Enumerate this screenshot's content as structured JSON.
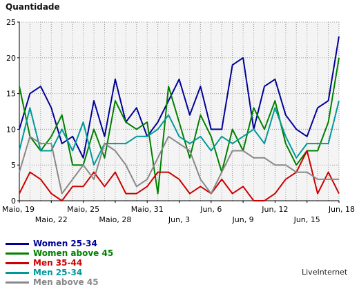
{
  "chart_data": {
    "type": "line",
    "ylabel": "Quantidade",
    "ylim": [
      0,
      25
    ],
    "yticks": [
      0,
      5,
      10,
      15,
      20,
      25
    ],
    "grid": true,
    "legend_position": "bottom-left",
    "brand": "LiveInternet",
    "categories": [
      "Maio, 19",
      "Maio, 20",
      "Maio, 21",
      "Maio, 22",
      "Maio, 23",
      "Maio, 24",
      "Maio, 25",
      "Maio, 26",
      "Maio, 27",
      "Maio, 28",
      "Maio, 29",
      "Maio, 30",
      "Maio, 31",
      "Jun, 1",
      "Jun, 2",
      "Jun, 3",
      "Jun, 4",
      "Jun, 5",
      "Jun, 6",
      "Jun, 7",
      "Jun, 8",
      "Jun, 9",
      "Jun, 10",
      "Jun, 11",
      "Jun, 12",
      "Jun, 13",
      "Jun, 14",
      "Jun, 15",
      "Jun, 16",
      "Jun, 17",
      "Jun, 18"
    ],
    "x_tick_labels": [
      {
        "label": "Maio, 19",
        "index": 0,
        "row": 0
      },
      {
        "label": "Maio, 22",
        "index": 3,
        "row": 1
      },
      {
        "label": "Maio, 25",
        "index": 6,
        "row": 0
      },
      {
        "label": "Maio, 28",
        "index": 9,
        "row": 1
      },
      {
        "label": "Maio, 31",
        "index": 12,
        "row": 0
      },
      {
        "label": "Jun, 3",
        "index": 15,
        "row": 1
      },
      {
        "label": "Jun, 6",
        "index": 18,
        "row": 0
      },
      {
        "label": "Jun, 9",
        "index": 21,
        "row": 1
      },
      {
        "label": "Jun, 12",
        "index": 24,
        "row": 0
      },
      {
        "label": "Jun, 15",
        "index": 27,
        "row": 1
      },
      {
        "label": "Jun, 18",
        "index": 30,
        "row": 0
      }
    ],
    "series": [
      {
        "name": "Women 25-34",
        "color": "#000099",
        "values": [
          10,
          15,
          16,
          13,
          8,
          9,
          6,
          14,
          9,
          17,
          11,
          13,
          9,
          11,
          14,
          17,
          12,
          16,
          10,
          10,
          19,
          20,
          10,
          16,
          17,
          12,
          10,
          9,
          13,
          14,
          23
        ]
      },
      {
        "name": "Women above 45",
        "color": "#008000",
        "values": [
          16,
          9,
          7,
          9,
          12,
          5,
          5,
          10,
          6,
          14,
          11,
          10,
          11,
          1,
          16,
          11,
          6,
          12,
          9,
          4,
          10,
          7,
          13,
          10,
          14,
          8,
          5,
          7,
          7,
          11,
          20
        ]
      },
      {
        "name": "Men 35-44",
        "color": "#cc0000",
        "values": [
          1,
          4,
          3,
          1,
          0,
          2,
          2,
          4,
          2,
          4,
          1,
          1,
          2,
          4,
          4,
          3,
          1,
          2,
          1,
          3,
          1,
          2,
          0,
          0,
          1,
          3,
          4,
          7,
          1,
          4,
          1
        ]
      },
      {
        "name": "Men 25-34",
        "color": "#009999",
        "values": [
          7,
          13,
          7,
          7,
          10,
          7,
          11,
          5,
          8,
          8,
          8,
          9,
          9,
          10,
          12,
          9,
          8,
          9,
          7,
          9,
          8,
          9,
          10,
          8,
          13,
          9,
          6,
          8,
          8,
          8,
          14
        ]
      },
      {
        "name": "Men above 45",
        "color": "#888888",
        "values": [
          4,
          9,
          8,
          8,
          1,
          3,
          5,
          3,
          8,
          7,
          5,
          2,
          3,
          6,
          9,
          8,
          7,
          3,
          1,
          4,
          7,
          7,
          6,
          6,
          5,
          5,
          4,
          4,
          3,
          3,
          3
        ]
      }
    ]
  }
}
